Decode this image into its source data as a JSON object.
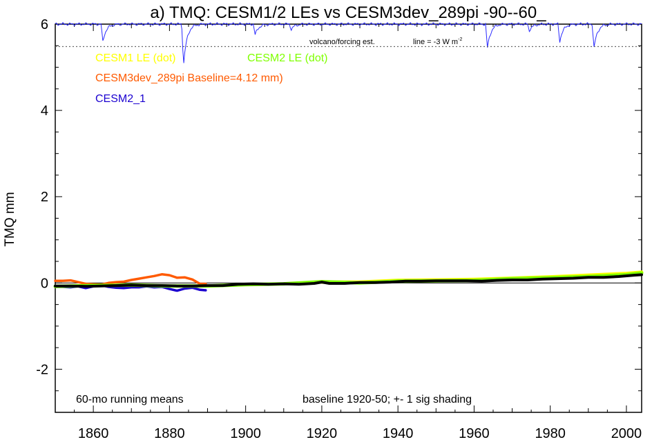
{
  "chart_data": {
    "type": "line",
    "title": "a) TMQ: CESM1/2 LEs vs CESM3dev_289pi -90--60_",
    "ylabel": "TMQ mm",
    "xlabel": "",
    "xlim": [
      1850,
      2004
    ],
    "ylim": [
      -3,
      6
    ],
    "xticks": [
      1860,
      1880,
      1900,
      1920,
      1940,
      1960,
      1980,
      2000
    ],
    "yticks": [
      -2,
      0,
      2,
      4,
      6
    ],
    "grid": false,
    "legend": [
      {
        "text": "CESM1 LE (dot)",
        "color": "#ffff00"
      },
      {
        "text": "CESM2 LE (dot)",
        "color": "#7fff00"
      },
      {
        "text": "CESM3dev_289pi Baseline=4.12 mm)",
        "color": "#ff5a00"
      },
      {
        "text": "CESM2_1",
        "color": "#1a00d0"
      }
    ],
    "annotations": {
      "bottom_left": "60-mo running means",
      "bottom_right": "baseline 1920-50; +- 1 sig shading",
      "volcano_label": "volcano/forcing est.",
      "line_label": "line = -3 W m",
      "line_label_sup": "-2"
    },
    "volcano_reference_line_y": 5.48,
    "series": [
      {
        "name": "CESM3dev_289pi Baseline=4.12 mm)",
        "color": "#ff5a00",
        "x": [
          1850,
          1852,
          1854,
          1856,
          1858,
          1860,
          1862,
          1864,
          1866,
          1868,
          1870,
          1872,
          1874,
          1876,
          1878,
          1880,
          1882,
          1884,
          1886,
          1888,
          1889.5
        ],
        "y": [
          0.05,
          0.05,
          0.06,
          0.02,
          -0.02,
          -0.03,
          -0.04,
          0.0,
          0.02,
          0.03,
          0.07,
          0.1,
          0.13,
          0.16,
          0.2,
          0.18,
          0.12,
          0.13,
          0.08,
          -0.02,
          -0.02
        ]
      },
      {
        "name": "CESM2_1",
        "color": "#1a00d0",
        "x": [
          1850,
          1852,
          1854,
          1856,
          1858,
          1860,
          1862,
          1864,
          1866,
          1868,
          1870,
          1872,
          1874,
          1876,
          1878,
          1880,
          1882,
          1884,
          1886,
          1888,
          1889.5
        ],
        "y": [
          -0.09,
          -0.09,
          -0.1,
          -0.08,
          -0.12,
          -0.08,
          -0.05,
          -0.09,
          -0.11,
          -0.12,
          -0.1,
          -0.1,
          -0.08,
          -0.1,
          -0.09,
          -0.14,
          -0.18,
          -0.13,
          -0.11,
          -0.16,
          -0.17
        ]
      },
      {
        "name": "CESM1 LE (dot)",
        "color": "#ffff00",
        "x": [
          1920,
          1930,
          1940,
          1950,
          1960,
          1970,
          1980,
          1990,
          2000,
          2004
        ],
        "y": [
          0.02,
          0.02,
          0.06,
          0.07,
          0.08,
          0.11,
          0.14,
          0.18,
          0.22,
          0.25
        ]
      },
      {
        "name": "CESM2 LE (dot)",
        "color": "#7fff00",
        "x": [
          1850,
          1860,
          1870,
          1880,
          1890,
          1900,
          1910,
          1920,
          1930,
          1940,
          1950,
          1960,
          1970,
          1980,
          1990,
          2000,
          2004
        ],
        "y": [
          -0.08,
          -0.06,
          -0.05,
          -0.07,
          -0.07,
          -0.04,
          -0.02,
          0.03,
          0.0,
          0.04,
          0.05,
          0.06,
          0.1,
          0.12,
          0.15,
          0.19,
          0.23
        ]
      },
      {
        "name": "",
        "color": "#000000",
        "x": [
          1850,
          1854,
          1858,
          1862,
          1866,
          1870,
          1874,
          1878,
          1882,
          1886,
          1890,
          1894,
          1898,
          1902,
          1906,
          1910,
          1914,
          1918,
          1920,
          1922,
          1926,
          1930,
          1934,
          1938,
          1942,
          1946,
          1950,
          1954,
          1958,
          1962,
          1966,
          1970,
          1974,
          1978,
          1982,
          1986,
          1990,
          1994,
          1998,
          2002,
          2004
        ],
        "y": [
          -0.07,
          -0.07,
          -0.08,
          -0.07,
          -0.06,
          -0.05,
          -0.06,
          -0.06,
          -0.07,
          -0.07,
          -0.06,
          -0.06,
          -0.03,
          -0.02,
          -0.03,
          -0.02,
          -0.03,
          -0.01,
          0.02,
          -0.01,
          -0.01,
          0.01,
          0.01,
          0.02,
          0.04,
          0.04,
          0.05,
          0.05,
          0.05,
          0.04,
          0.06,
          0.07,
          0.07,
          0.09,
          0.1,
          0.11,
          0.13,
          0.13,
          0.15,
          0.18,
          0.19
        ]
      }
    ],
    "volcano_dips": [
      {
        "year": 1862.5,
        "depth": 0.4
      },
      {
        "year": 1883.7,
        "depth": 0.95
      },
      {
        "year": 1902.5,
        "depth": 0.25
      },
      {
        "year": 1912,
        "depth": 0.12
      },
      {
        "year": 1963.5,
        "depth": 0.55
      },
      {
        "year": 1974.5,
        "depth": 0.15
      },
      {
        "year": 1982.5,
        "depth": 0.4
      },
      {
        "year": 1991.5,
        "depth": 0.55
      }
    ]
  }
}
